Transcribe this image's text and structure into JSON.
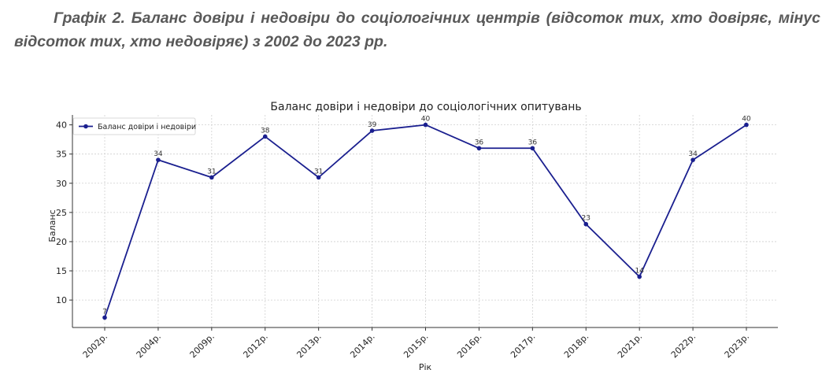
{
  "document": {
    "caption": "Графік 2. Баланс довіри і недовіри до соціологічних центрів (відсоток тих, хто довіряє, мінус відсоток тих, хто недовіряє) з 2002 до 2023 рр."
  },
  "colors": {
    "line": "#1a1f8f",
    "caption": "#595959",
    "grid": "#cfcfcf"
  },
  "chart_data": {
    "type": "line",
    "title": "Баланс довіри і недовіри до соціологічних опитувань",
    "xlabel": "Рік",
    "ylabel": "Баланс",
    "categories": [
      "2002р.",
      "2004р.",
      "2009р.",
      "2012р.",
      "2013р.",
      "2014р.",
      "2015р.",
      "2016р.",
      "2017р.",
      "2018р.",
      "2021р.",
      "2022р.",
      "2023р."
    ],
    "series": [
      {
        "name": "Баланс довіри і недовіри",
        "values": [
          7,
          34,
          31,
          38,
          31,
          39,
          40,
          36,
          36,
          23,
          14,
          34,
          40
        ]
      }
    ],
    "yticks": [
      10,
      15,
      20,
      25,
      30,
      35,
      40
    ],
    "ylim": [
      5.3,
      41.7
    ],
    "grid": true,
    "legend_position": "top-left",
    "marker": "circle"
  }
}
